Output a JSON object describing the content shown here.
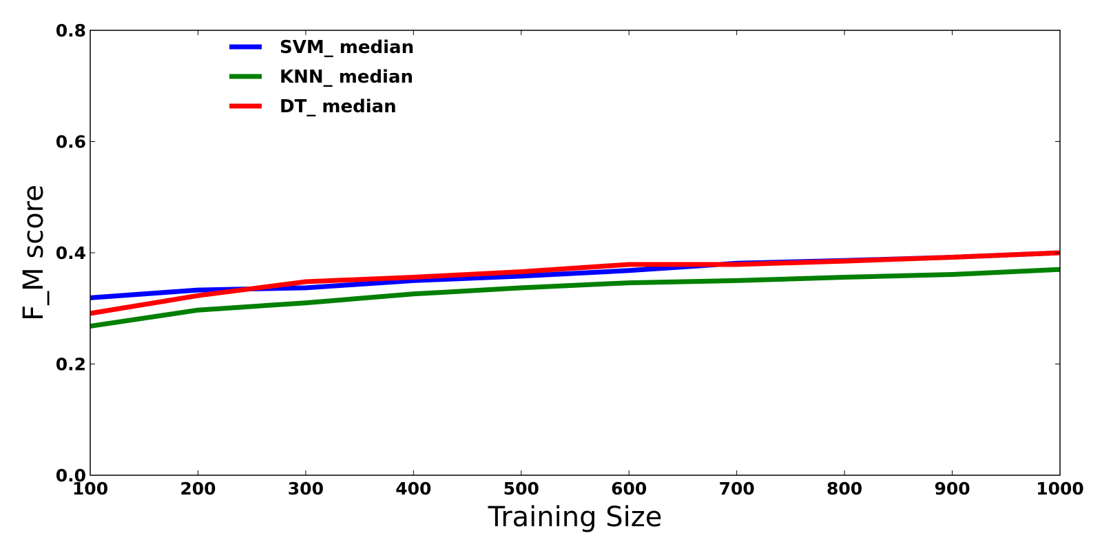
{
  "chart_data": {
    "type": "line",
    "xlabel": "Training Size",
    "ylabel": "F_M score",
    "xlim": [
      100,
      1000
    ],
    "ylim": [
      0.0,
      0.8
    ],
    "xticks": [
      "100",
      "200",
      "300",
      "400",
      "500",
      "600",
      "700",
      "800",
      "900",
      "1000"
    ],
    "yticks": [
      "0.0",
      "0.2",
      "0.4",
      "0.6",
      "0.8"
    ],
    "grid": false,
    "legend_position": "top-left",
    "x": [
      100,
      200,
      300,
      400,
      500,
      600,
      700,
      800,
      900,
      1000
    ],
    "series": [
      {
        "name": "SVM_ median",
        "color": "#0000ff",
        "values": [
          0.319,
          0.333,
          0.337,
          0.35,
          0.358,
          0.368,
          0.381,
          0.386,
          0.392,
          0.4
        ]
      },
      {
        "name": "KNN_ median",
        "color": "#008000",
        "values": [
          0.268,
          0.297,
          0.31,
          0.326,
          0.337,
          0.346,
          0.35,
          0.356,
          0.361,
          0.37
        ]
      },
      {
        "name": "DT_ median",
        "color": "#ff0000",
        "values": [
          0.291,
          0.323,
          0.348,
          0.356,
          0.366,
          0.379,
          0.379,
          0.385,
          0.392,
          0.4
        ]
      }
    ]
  }
}
